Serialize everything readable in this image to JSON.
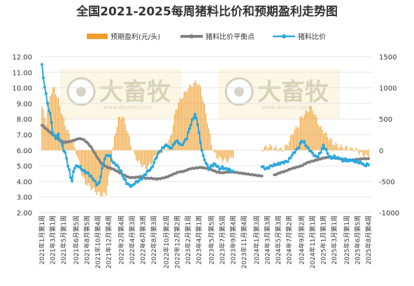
{
  "chart_data": {
    "type": "bar+line",
    "title": "全国2021-2025每周猪料比价和预期盈利走势图",
    "left_axis": {
      "ylim": [
        2.0,
        12.0
      ],
      "ticks": [
        "2.00",
        "3.00",
        "4.00",
        "5.00",
        "6.00",
        "7.00",
        "8.00",
        "9.00",
        "10.00",
        "11.00",
        "12.00"
      ]
    },
    "right_axis": {
      "ylim": [
        -1000,
        1500
      ],
      "ticks": [
        "-1000",
        "-500",
        "0",
        "500",
        "1000",
        "1500"
      ]
    },
    "legend": {
      "position": "top",
      "entries": [
        {
          "name": "预期盈利(元/头)",
          "type": "bar",
          "color": "#f0a030"
        },
        {
          "name": "猪料比价平衡点",
          "type": "line",
          "color": "#808080"
        },
        {
          "name": "猪料比价",
          "type": "line",
          "color": "#29a8e0"
        }
      ]
    },
    "x_labels": [
      "2021年1月第1周",
      "2021年3月第1周",
      "2021年5月第1周",
      "2021年6月第5周",
      "2021年8月第5周",
      "2021年10月第4周",
      "2021年12月第4周",
      "2022年2月第4周",
      "2022年4月第3周",
      "2022年6月第3周",
      "2022年8月第3周",
      "2022年10月第2周",
      "2022年12月第2周",
      "2023年2月第1周",
      "2023年4月第1周",
      "2023年5月第5周",
      "2023年7月第5周",
      "2023年9月第4周",
      "2023年11月第4周",
      "2024年1月第3周",
      "2024年3月第3周",
      "2024年5月第3周",
      "2024年7月第2周",
      "2024年9月第2周",
      "2024年11月第1周",
      "2025年1月第1周",
      "2025年3月第1周",
      "2025年5月第1周",
      "2025年6月第5周",
      "2025年8月第4周"
    ],
    "watermark": {
      "text": "大畜牧",
      "sub": "www.dxumu.com",
      "copies": 2
    },
    "n_weeks": 240,
    "gaps": [
      [
        140,
        161
      ]
    ],
    "profit_anchors": [
      [
        0,
        700
      ],
      [
        3,
        450
      ],
      [
        6,
        900
      ],
      [
        9,
        1000
      ],
      [
        12,
        800
      ],
      [
        15,
        550
      ],
      [
        18,
        350
      ],
      [
        21,
        200
      ],
      [
        24,
        50
      ],
      [
        27,
        -200
      ],
      [
        30,
        -450
      ],
      [
        33,
        -550
      ],
      [
        36,
        -600
      ],
      [
        40,
        -680
      ],
      [
        44,
        -720
      ],
      [
        47,
        -690
      ],
      [
        50,
        -320
      ],
      [
        53,
        200
      ],
      [
        56,
        500
      ],
      [
        59,
        550
      ],
      [
        62,
        350
      ],
      [
        65,
        100
      ],
      [
        68,
        -100
      ],
      [
        71,
        -200
      ],
      [
        74,
        -250
      ],
      [
        77,
        -300
      ],
      [
        80,
        -200
      ],
      [
        83,
        -100
      ],
      [
        86,
        -50
      ],
      [
        89,
        0
      ],
      [
        92,
        50
      ],
      [
        95,
        300
      ],
      [
        98,
        650
      ],
      [
        101,
        800
      ],
      [
        104,
        900
      ],
      [
        107,
        1000
      ],
      [
        110,
        1050
      ],
      [
        113,
        1100
      ],
      [
        116,
        1000
      ],
      [
        119,
        700
      ],
      [
        122,
        350
      ],
      [
        124,
        100
      ],
      [
        126,
        -50
      ],
      [
        129,
        -120
      ],
      [
        132,
        -150
      ],
      [
        135,
        -170
      ],
      [
        137,
        -160
      ],
      [
        139,
        -100
      ],
      [
        161,
        0
      ],
      [
        164,
        50
      ],
      [
        167,
        60
      ],
      [
        170,
        40
      ],
      [
        173,
        20
      ],
      [
        176,
        0
      ],
      [
        178,
        50
      ],
      [
        180,
        100
      ],
      [
        182,
        200
      ],
      [
        184,
        300
      ],
      [
        186,
        350
      ],
      [
        188,
        400
      ],
      [
        189,
        500
      ],
      [
        191,
        550
      ],
      [
        193,
        600
      ],
      [
        195,
        650
      ],
      [
        196,
        700
      ],
      [
        198,
        650
      ],
      [
        200,
        550
      ],
      [
        202,
        450
      ],
      [
        204,
        350
      ],
      [
        206,
        300
      ],
      [
        208,
        250
      ],
      [
        210,
        200
      ],
      [
        212,
        150
      ],
      [
        214,
        100
      ],
      [
        216,
        80
      ],
      [
        218,
        60
      ],
      [
        220,
        50
      ],
      [
        222,
        40
      ],
      [
        224,
        30
      ],
      [
        226,
        20
      ],
      [
        228,
        10
      ],
      [
        230,
        0
      ],
      [
        232,
        -30
      ],
      [
        234,
        -60
      ],
      [
        236,
        -80
      ],
      [
        239,
        -120
      ]
    ],
    "balance_anchors": [
      [
        0,
        7.6
      ],
      [
        4,
        7.3
      ],
      [
        8,
        7.0
      ],
      [
        12,
        6.7
      ],
      [
        16,
        6.5
      ],
      [
        20,
        6.55
      ],
      [
        24,
        6.65
      ],
      [
        27,
        6.75
      ],
      [
        30,
        6.7
      ],
      [
        33,
        6.5
      ],
      [
        36,
        6.2
      ],
      [
        40,
        5.6
      ],
      [
        44,
        5.1
      ],
      [
        48,
        4.9
      ],
      [
        52,
        4.8
      ],
      [
        56,
        4.6
      ],
      [
        60,
        4.4
      ],
      [
        64,
        4.25
      ],
      [
        68,
        4.25
      ],
      [
        72,
        4.3
      ],
      [
        76,
        4.2
      ],
      [
        80,
        4.2
      ],
      [
        84,
        4.15
      ],
      [
        88,
        4.2
      ],
      [
        92,
        4.3
      ],
      [
        96,
        4.45
      ],
      [
        100,
        4.6
      ],
      [
        104,
        4.65
      ],
      [
        108,
        4.8
      ],
      [
        112,
        4.85
      ],
      [
        116,
        4.9
      ],
      [
        120,
        4.85
      ],
      [
        124,
        4.75
      ],
      [
        128,
        4.6
      ],
      [
        132,
        4.55
      ],
      [
        136,
        4.6
      ],
      [
        140,
        4.6
      ],
      [
        144,
        4.55
      ],
      [
        148,
        4.5
      ],
      [
        152,
        4.45
      ],
      [
        156,
        4.4
      ],
      [
        160,
        4.35
      ],
      [
        170,
        4.4
      ],
      [
        174,
        4.55
      ],
      [
        178,
        4.65
      ],
      [
        182,
        4.8
      ],
      [
        186,
        4.9
      ],
      [
        190,
        5.0
      ],
      [
        194,
        5.2
      ],
      [
        198,
        5.3
      ],
      [
        202,
        5.4
      ],
      [
        206,
        5.5
      ],
      [
        210,
        5.55
      ],
      [
        214,
        5.5
      ],
      [
        218,
        5.45
      ],
      [
        222,
        5.4
      ],
      [
        226,
        5.35
      ],
      [
        230,
        5.4
      ],
      [
        234,
        5.45
      ],
      [
        239,
        5.45
      ]
    ],
    "balance_gaps": [
      [
        161,
        170
      ]
    ],
    "ratio_anchors": [
      [
        0,
        11.5
      ],
      [
        1,
        10.6
      ],
      [
        2,
        10.1
      ],
      [
        3,
        9.6
      ],
      [
        4,
        9.0
      ],
      [
        5,
        8.6
      ],
      [
        6,
        8.3
      ],
      [
        7,
        7.8
      ],
      [
        8,
        7.1
      ],
      [
        9,
        6.9
      ],
      [
        10,
        6.8
      ],
      [
        11,
        6.9
      ],
      [
        12,
        7.0
      ],
      [
        13,
        6.7
      ],
      [
        14,
        6.5
      ],
      [
        15,
        6.3
      ],
      [
        16,
        6.0
      ],
      [
        17,
        5.8
      ],
      [
        18,
        5.5
      ],
      [
        19,
        5.0
      ],
      [
        20,
        4.7
      ],
      [
        21,
        4.3
      ],
      [
        22,
        4.0
      ],
      [
        23,
        4.6
      ],
      [
        24,
        4.9
      ],
      [
        26,
        5.0
      ],
      [
        28,
        4.9
      ],
      [
        30,
        4.7
      ],
      [
        32,
        4.6
      ],
      [
        34,
        4.5
      ],
      [
        36,
        4.3
      ],
      [
        38,
        4.1
      ],
      [
        40,
        3.8
      ],
      [
        42,
        3.9
      ],
      [
        44,
        4.8
      ],
      [
        46,
        5.5
      ],
      [
        48,
        5.7
      ],
      [
        50,
        5.6
      ],
      [
        52,
        5.2
      ],
      [
        54,
        5.1
      ],
      [
        56,
        4.9
      ],
      [
        58,
        4.6
      ],
      [
        60,
        4.2
      ],
      [
        62,
        3.9
      ],
      [
        64,
        3.75
      ],
      [
        66,
        3.7
      ],
      [
        68,
        3.9
      ],
      [
        70,
        4.0
      ],
      [
        72,
        4.1
      ],
      [
        74,
        4.3
      ],
      [
        76,
        4.5
      ],
      [
        78,
        4.7
      ],
      [
        80,
        4.8
      ],
      [
        82,
        5.2
      ],
      [
        84,
        5.6
      ],
      [
        86,
        5.9
      ],
      [
        88,
        6.1
      ],
      [
        90,
        6.3
      ],
      [
        92,
        6.3
      ],
      [
        94,
        6.1
      ],
      [
        96,
        6.3
      ],
      [
        98,
        6.6
      ],
      [
        100,
        6.5
      ],
      [
        102,
        6.3
      ],
      [
        104,
        6.5
      ],
      [
        106,
        6.8
      ],
      [
        108,
        7.4
      ],
      [
        110,
        7.9
      ],
      [
        112,
        8.3
      ],
      [
        114,
        7.7
      ],
      [
        116,
        6.5
      ],
      [
        118,
        5.6
      ],
      [
        120,
        5.2
      ],
      [
        122,
        4.8
      ],
      [
        124,
        5.0
      ],
      [
        126,
        5.1
      ],
      [
        128,
        5.0
      ],
      [
        130,
        4.8
      ],
      [
        132,
        4.9
      ],
      [
        134,
        4.8
      ],
      [
        136,
        4.8
      ],
      [
        138,
        4.7
      ],
      [
        140,
        4.6
      ],
      [
        142,
        4.9
      ],
      [
        144,
        5.1
      ],
      [
        148,
        5.0
      ],
      [
        152,
        4.9
      ],
      [
        156,
        4.9
      ],
      [
        160,
        5.0
      ],
      [
        164,
        4.8
      ],
      [
        168,
        5.0
      ],
      [
        172,
        5.1
      ],
      [
        176,
        5.2
      ],
      [
        180,
        5.3
      ],
      [
        184,
        5.8
      ],
      [
        186,
        6.0
      ],
      [
        188,
        6.2
      ],
      [
        190,
        6.6
      ],
      [
        192,
        6.5
      ],
      [
        194,
        6.2
      ],
      [
        196,
        6.0
      ],
      [
        198,
        5.8
      ],
      [
        200,
        5.6
      ],
      [
        202,
        5.6
      ],
      [
        204,
        5.9
      ],
      [
        206,
        6.3
      ],
      [
        208,
        6.0
      ],
      [
        210,
        5.6
      ],
      [
        212,
        5.5
      ],
      [
        214,
        5.6
      ],
      [
        216,
        5.5
      ],
      [
        218,
        5.5
      ],
      [
        220,
        5.3
      ],
      [
        222,
        5.4
      ],
      [
        224,
        5.3
      ],
      [
        226,
        5.4
      ],
      [
        228,
        5.3
      ],
      [
        230,
        5.3
      ],
      [
        232,
        5.2
      ],
      [
        234,
        5.2
      ],
      [
        236,
        5.0
      ],
      [
        238,
        5.1
      ],
      [
        239,
        5.05
      ]
    ],
    "ratio_gaps": [
      [
        140,
        161
      ]
    ]
  }
}
